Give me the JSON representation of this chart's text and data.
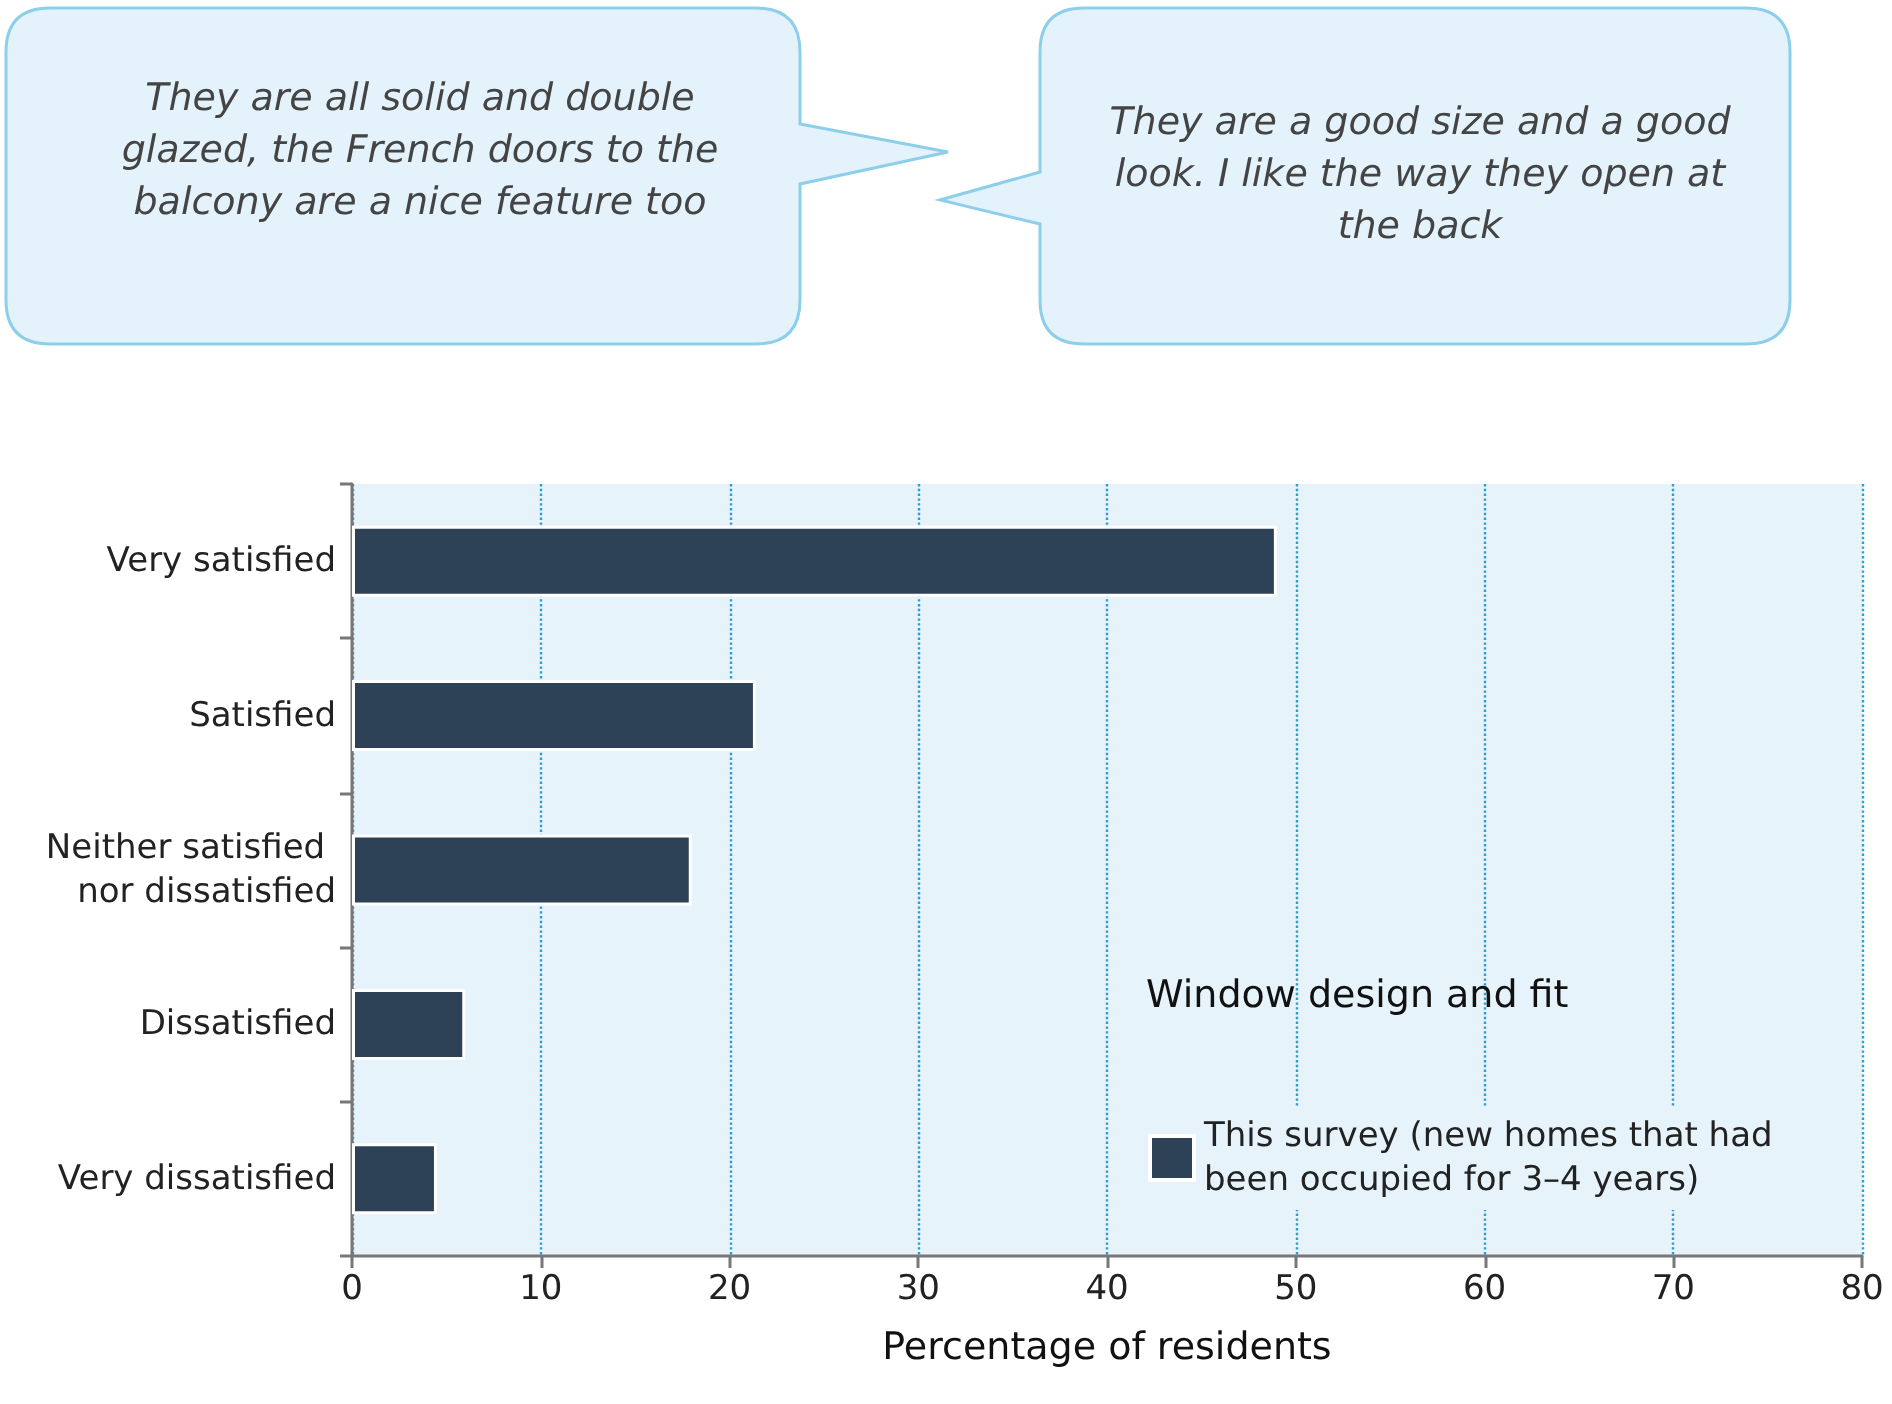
{
  "chart_data": {
    "type": "bar",
    "orientation": "horizontal",
    "categories": [
      "Very satisfied",
      "Satisfied",
      "Neither satisfied nor dissatisfied",
      "Dissatisfied",
      "Very dissatisfied"
    ],
    "series": [
      {
        "name": "This survey (new homes that had been occupied for 3–4 years)",
        "color": "#2d4256",
        "values": [
          49,
          21.4,
          18,
          6,
          4.5
        ]
      }
    ],
    "xlabel": "Percentage of residents",
    "legend_title": "Window design and fit",
    "legend": "bottom right",
    "grid": "x",
    "xlim": [
      0,
      80
    ],
    "xticks": [
      0,
      10,
      20,
      30,
      40,
      50,
      60,
      70,
      80
    ],
    "annotations": [
      "They are all solid and double glazed, the French doors to the balcony are a nice feature too",
      "They are a good size and a good look. I like the way they open at the back"
    ]
  }
}
